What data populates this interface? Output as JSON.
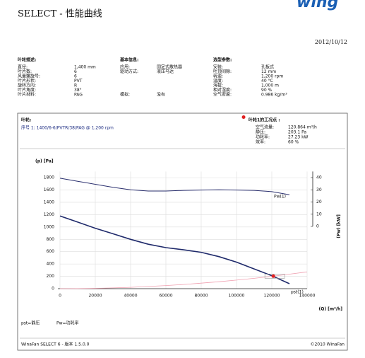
{
  "logo": "wing",
  "header": {
    "title": "SELECT - 性能曲线",
    "date": "2012/10/12"
  },
  "params": [
    {
      "title": "叶轮描述:",
      "rows": [
        [
          "直径:",
          "1,400 mm"
        ],
        [
          "叶片数:",
          "6"
        ],
        [
          "风量螺旋号:",
          "6"
        ],
        [
          "叶片形状:",
          "PVT"
        ],
        [
          "旋转方向:",
          "R"
        ],
        [
          "叶片角度:",
          "38°"
        ],
        [
          "叶片材料:",
          "PAG"
        ]
      ]
    },
    {
      "title": "基本信息:",
      "rows": [
        [
          "应用:",
          "固定式散热器"
        ],
        [
          "驱动方式:",
          "液压马达"
        ],
        [
          "",
          ""
        ],
        [
          "",
          ""
        ],
        [
          "",
          ""
        ],
        [
          "",
          ""
        ],
        [
          "模拟:",
          "没有"
        ]
      ]
    },
    {
      "title": "选型参数:",
      "rows": [
        [
          "安装:",
          "孔板式"
        ],
        [
          "叶顶间隙:",
          "12 mm"
        ],
        [
          "转速:",
          "1,200 rpm"
        ],
        [
          "温度:",
          "40 °C"
        ],
        [
          "海拔:",
          "1,000 m"
        ],
        [
          "相对湿度:",
          "90 %"
        ],
        [
          "空气密度:",
          "0.986 kg/m³"
        ]
      ]
    }
  ],
  "impeller": {
    "title": "叶轮:",
    "spec": "序号 1: 1400/6-6/PVTR/38/PAG @ 1,200 rpm"
  },
  "operating": {
    "title": "叶轮1的工况点 :",
    "rows": [
      [
        "空气流量:",
        "120.864 m³/h"
      ],
      [
        "静压:",
        "203.1 Pa"
      ],
      [
        "功耗率:",
        "27.23 kW"
      ],
      [
        "效率:",
        "60 %"
      ]
    ]
  },
  "chart_data": {
    "type": "line",
    "ylabel": "(p) [Pa]",
    "y2label": "(Pw) [kW]",
    "xlabel": "(Q) [m³/h]",
    "x": [
      0,
      10000,
      20000,
      30000,
      40000,
      50000,
      60000,
      70000,
      80000,
      90000,
      100000,
      110000,
      120000,
      130000,
      140000
    ],
    "xlim": [
      0,
      140000
    ],
    "xticks": [
      0,
      20000,
      40000,
      60000,
      80000,
      100000,
      120000,
      140000
    ],
    "ylim": [
      0,
      1900
    ],
    "yticks": [
      0,
      200,
      400,
      600,
      800,
      1000,
      1200,
      1400,
      1600,
      1800
    ],
    "y2lim": [
      0,
      45
    ],
    "y2ticks": [
      0,
      10,
      20,
      30,
      40
    ],
    "grid": true,
    "series": [
      {
        "name": "pst(1)",
        "color": "#1f2a6b",
        "values": [
          1180,
          1080,
          980,
          890,
          800,
          720,
          665,
          630,
          590,
          520,
          430,
          320,
          210,
          80,
          null
        ]
      },
      {
        "name": "Pw(1)",
        "color": "#2a2f6e",
        "axis": "y2",
        "values": [
          39.5,
          37,
          34.5,
          32,
          30,
          29,
          29,
          29.5,
          29.8,
          30,
          29.8,
          29.5,
          28.5,
          26,
          null
        ]
      },
      {
        "color": "#f0a0b0",
        "values": [
          0,
          1.4,
          5.6,
          12.5,
          22,
          35,
          50,
          68,
          89,
          113,
          139,
          168,
          200,
          235,
          272
        ]
      }
    ],
    "operating_point": {
      "x": 120864,
      "y": 203.1,
      "color": "#e02020"
    }
  },
  "legend_notes": [
    "pst=静压",
    "Pw=功耗率"
  ],
  "footer": {
    "left": "WinaFan SELECT 6 - 版本 1.5.0.0",
    "right": "©2010 WinaFan"
  }
}
